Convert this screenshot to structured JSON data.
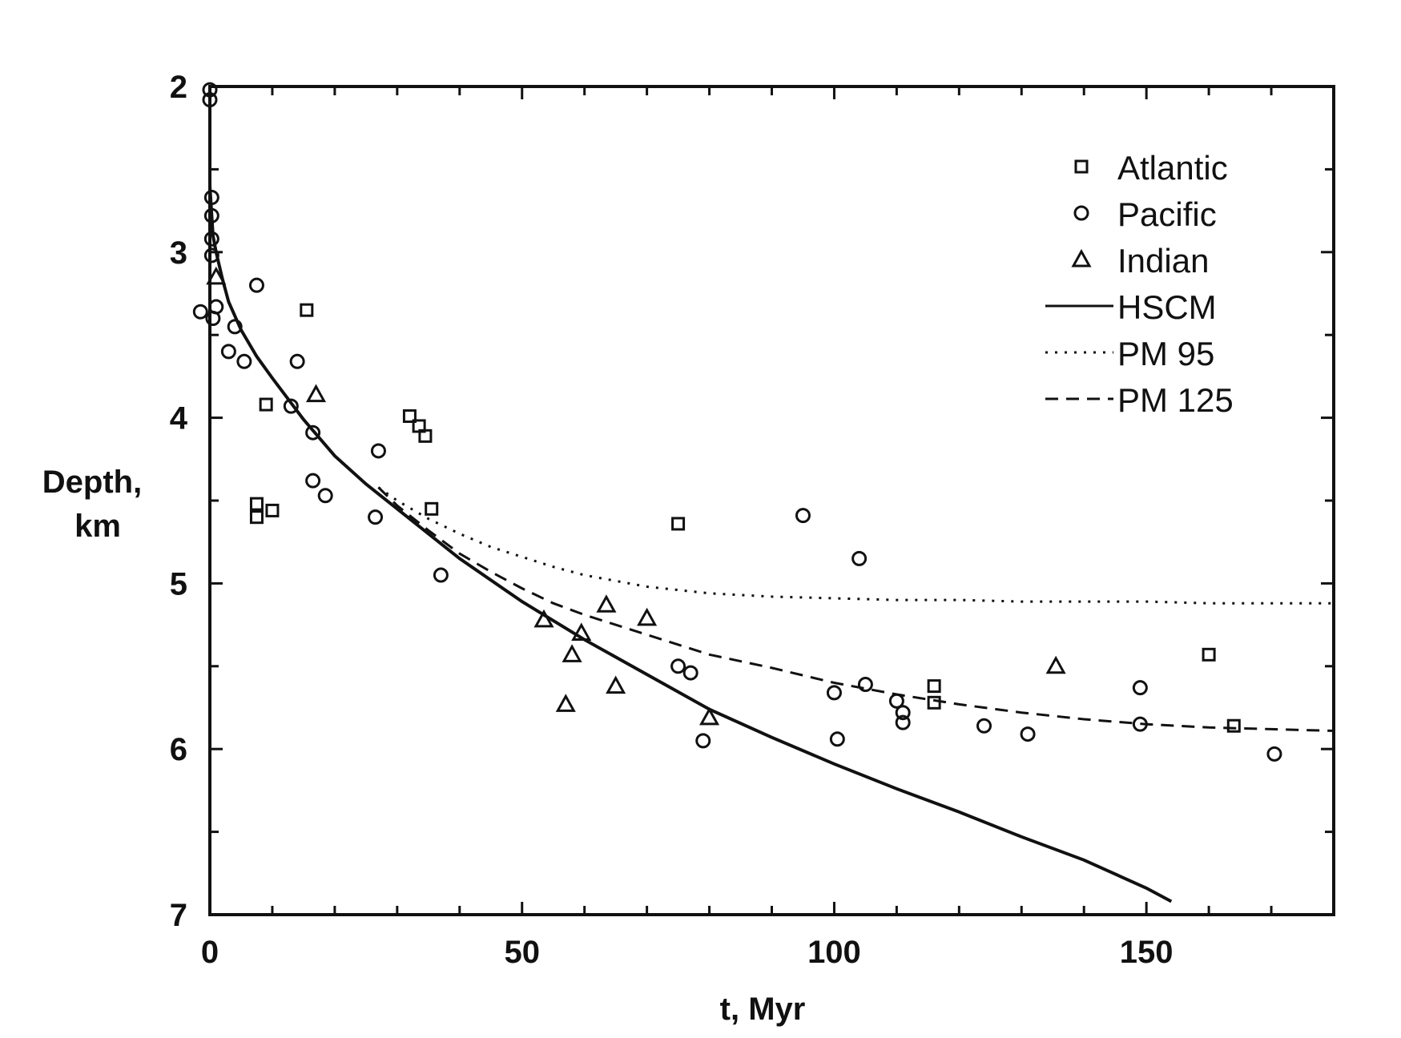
{
  "chart_data": {
    "type": "scatter",
    "xlabel": "t, Myr",
    "ylabel_line1": "Depth,",
    "ylabel_line2": "km",
    "xlim": [
      0,
      180
    ],
    "ylim": [
      2,
      7
    ],
    "y_inverted": true,
    "x_ticks": [
      0,
      50,
      100,
      150
    ],
    "y_ticks": [
      2,
      3,
      4,
      5,
      6,
      7
    ],
    "grid": false,
    "legend_position": "top-right",
    "series": [
      {
        "name": "Atlantic",
        "marker": "square",
        "points": [
          [
            7.5,
            4.52
          ],
          [
            7.5,
            4.6
          ],
          [
            9,
            3.92
          ],
          [
            10,
            4.56
          ],
          [
            15.5,
            3.35
          ],
          [
            32,
            3.99
          ],
          [
            33.5,
            4.05
          ],
          [
            34.5,
            4.11
          ],
          [
            35.5,
            4.55
          ],
          [
            75,
            4.64
          ],
          [
            116,
            5.62
          ],
          [
            116,
            5.72
          ],
          [
            160,
            5.43
          ],
          [
            164,
            5.86
          ]
        ]
      },
      {
        "name": "Pacific",
        "marker": "circle",
        "points": [
          [
            0,
            2.02
          ],
          [
            0,
            2.08
          ],
          [
            0.3,
            2.67
          ],
          [
            0.3,
            2.78
          ],
          [
            0.3,
            2.92
          ],
          [
            0.3,
            3.02
          ],
          [
            0.5,
            3.4
          ],
          [
            1,
            3.33
          ],
          [
            -1.5,
            3.36
          ],
          [
            3,
            3.6
          ],
          [
            4,
            3.45
          ],
          [
            5.5,
            3.66
          ],
          [
            7.5,
            3.2
          ],
          [
            13,
            3.93
          ],
          [
            14,
            3.66
          ],
          [
            16.5,
            4.09
          ],
          [
            16.5,
            4.38
          ],
          [
            18.5,
            4.47
          ],
          [
            26.5,
            4.6
          ],
          [
            27,
            4.2
          ],
          [
            37,
            4.95
          ],
          [
            75,
            5.5
          ],
          [
            77,
            5.54
          ],
          [
            79,
            5.95
          ],
          [
            95,
            4.59
          ],
          [
            100,
            5.66
          ],
          [
            100.5,
            5.94
          ],
          [
            104,
            4.85
          ],
          [
            105,
            5.61
          ],
          [
            110,
            5.71
          ],
          [
            111,
            5.78
          ],
          [
            111,
            5.84
          ],
          [
            124,
            5.86
          ],
          [
            131,
            5.91
          ],
          [
            149,
            5.63
          ],
          [
            149,
            5.85
          ],
          [
            170.5,
            6.03
          ]
        ]
      },
      {
        "name": "Indian",
        "marker": "triangle",
        "points": [
          [
            1,
            3.15
          ],
          [
            17,
            3.86
          ],
          [
            53.5,
            5.22
          ],
          [
            57,
            5.73
          ],
          [
            58,
            5.43
          ],
          [
            59.5,
            5.3
          ],
          [
            63.5,
            5.13
          ],
          [
            65,
            5.62
          ],
          [
            70,
            5.21
          ],
          [
            80,
            5.81
          ],
          [
            135.5,
            5.5
          ]
        ]
      },
      {
        "name": "HSCM",
        "style": "solid",
        "x": [
          0,
          0.5,
          1,
          2,
          3,
          5,
          7.5,
          10,
          15,
          20,
          25,
          30,
          40,
          50,
          60,
          70,
          80,
          90,
          100,
          110,
          120,
          130,
          140,
          150,
          154
        ],
        "y": [
          2.6,
          2.9,
          3.0,
          3.16,
          3.3,
          3.47,
          3.63,
          3.76,
          4.01,
          4.23,
          4.4,
          4.55,
          4.85,
          5.11,
          5.34,
          5.55,
          5.76,
          5.93,
          6.09,
          6.24,
          6.38,
          6.53,
          6.67,
          6.84,
          6.92
        ]
      },
      {
        "name": "PM 95",
        "style": "dotted",
        "x": [
          27,
          30,
          35,
          40,
          45,
          50,
          55,
          60,
          70,
          80,
          90,
          100,
          110,
          120,
          130,
          140,
          150,
          160,
          170,
          180
        ],
        "y": [
          4.42,
          4.5,
          4.61,
          4.7,
          4.78,
          4.84,
          4.9,
          4.95,
          5.02,
          5.06,
          5.08,
          5.09,
          5.1,
          5.1,
          5.11,
          5.11,
          5.11,
          5.12,
          5.12,
          5.12
        ]
      },
      {
        "name": "PM 125",
        "style": "dashed",
        "x": [
          27,
          30,
          35,
          40,
          45,
          50,
          55,
          60,
          70,
          80,
          90,
          100,
          110,
          120,
          130,
          140,
          150,
          160,
          170,
          180
        ],
        "y": [
          4.42,
          4.53,
          4.68,
          4.82,
          4.93,
          5.03,
          5.12,
          5.19,
          5.31,
          5.43,
          5.51,
          5.6,
          5.67,
          5.73,
          5.78,
          5.82,
          5.85,
          5.87,
          5.88,
          5.89
        ]
      }
    ]
  }
}
